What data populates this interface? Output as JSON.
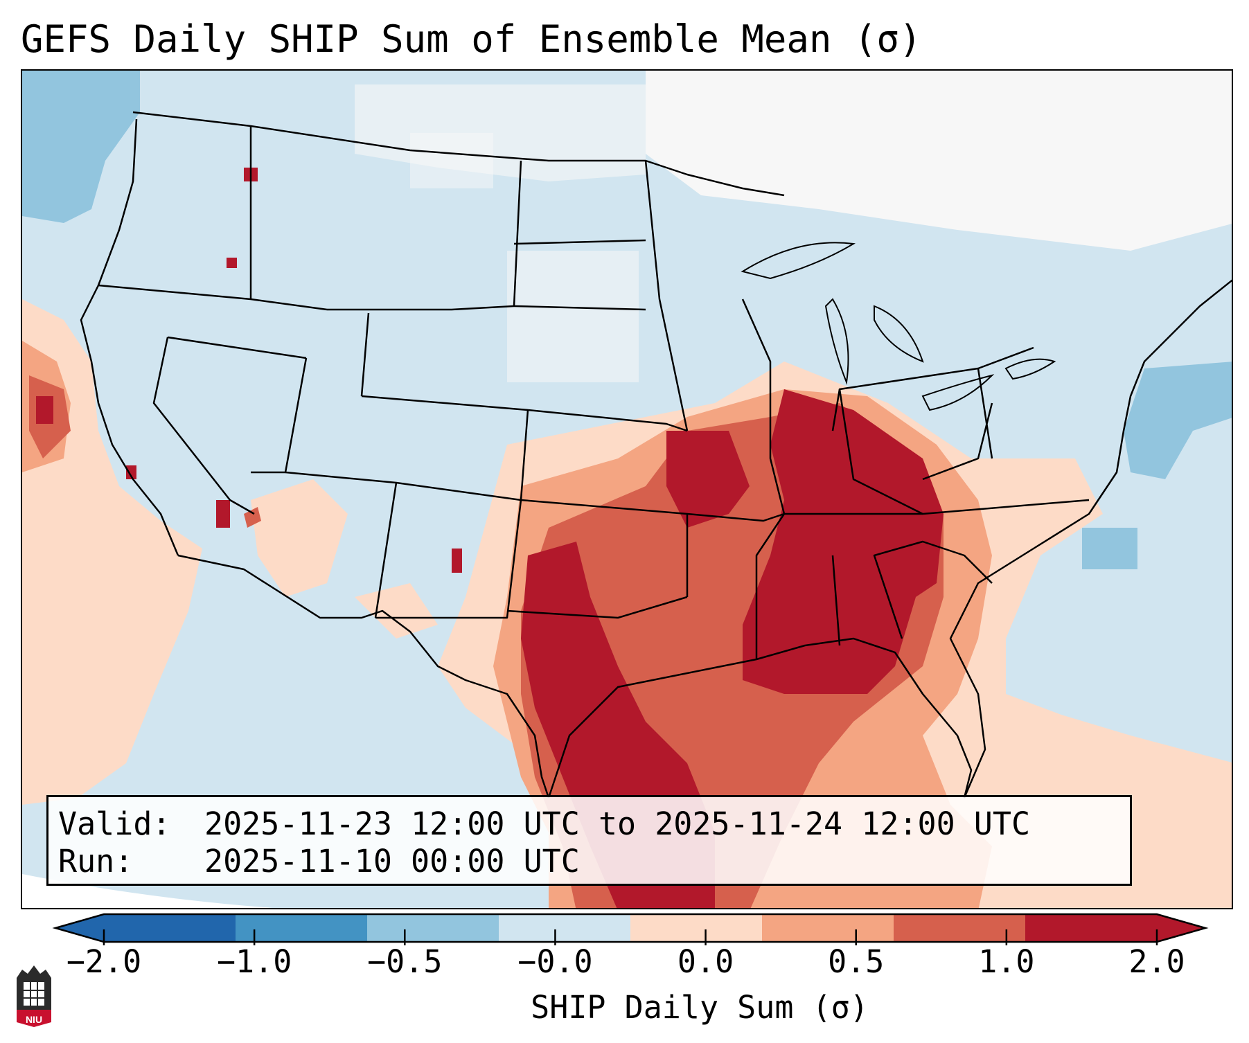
{
  "header": {
    "title": "GEFS Daily SHIP Sum of Ensemble Mean (σ)"
  },
  "info": {
    "valid_key": "Valid:",
    "valid_value": "2025-11-23 12:00 UTC to 2025-11-24 12:00 UTC",
    "run_key": "Run:",
    "run_value": "2025-11-10 00:00 UTC"
  },
  "colorbar": {
    "label": "SHIP Daily Sum (σ)",
    "ticks": [
      "−2.0",
      "−1.0",
      "−0.5",
      "−0.0",
      "0.0",
      "0.5",
      "1.0",
      "2.0"
    ],
    "colors": [
      "#2166ac",
      "#4393c3",
      "#92c5de",
      "#d1e5f0",
      "#fddbc7",
      "#f4a582",
      "#d6604d",
      "#b2182b"
    ],
    "extend": "both"
  },
  "map": {
    "region": "Continental United States",
    "ocean_color": "#d1e5f0",
    "high_anomaly_area": "Southern Plains, Lower Mississippi Valley, Ohio Valley, Gulf of Mexico"
  },
  "logo": {
    "text": "NIU"
  }
}
